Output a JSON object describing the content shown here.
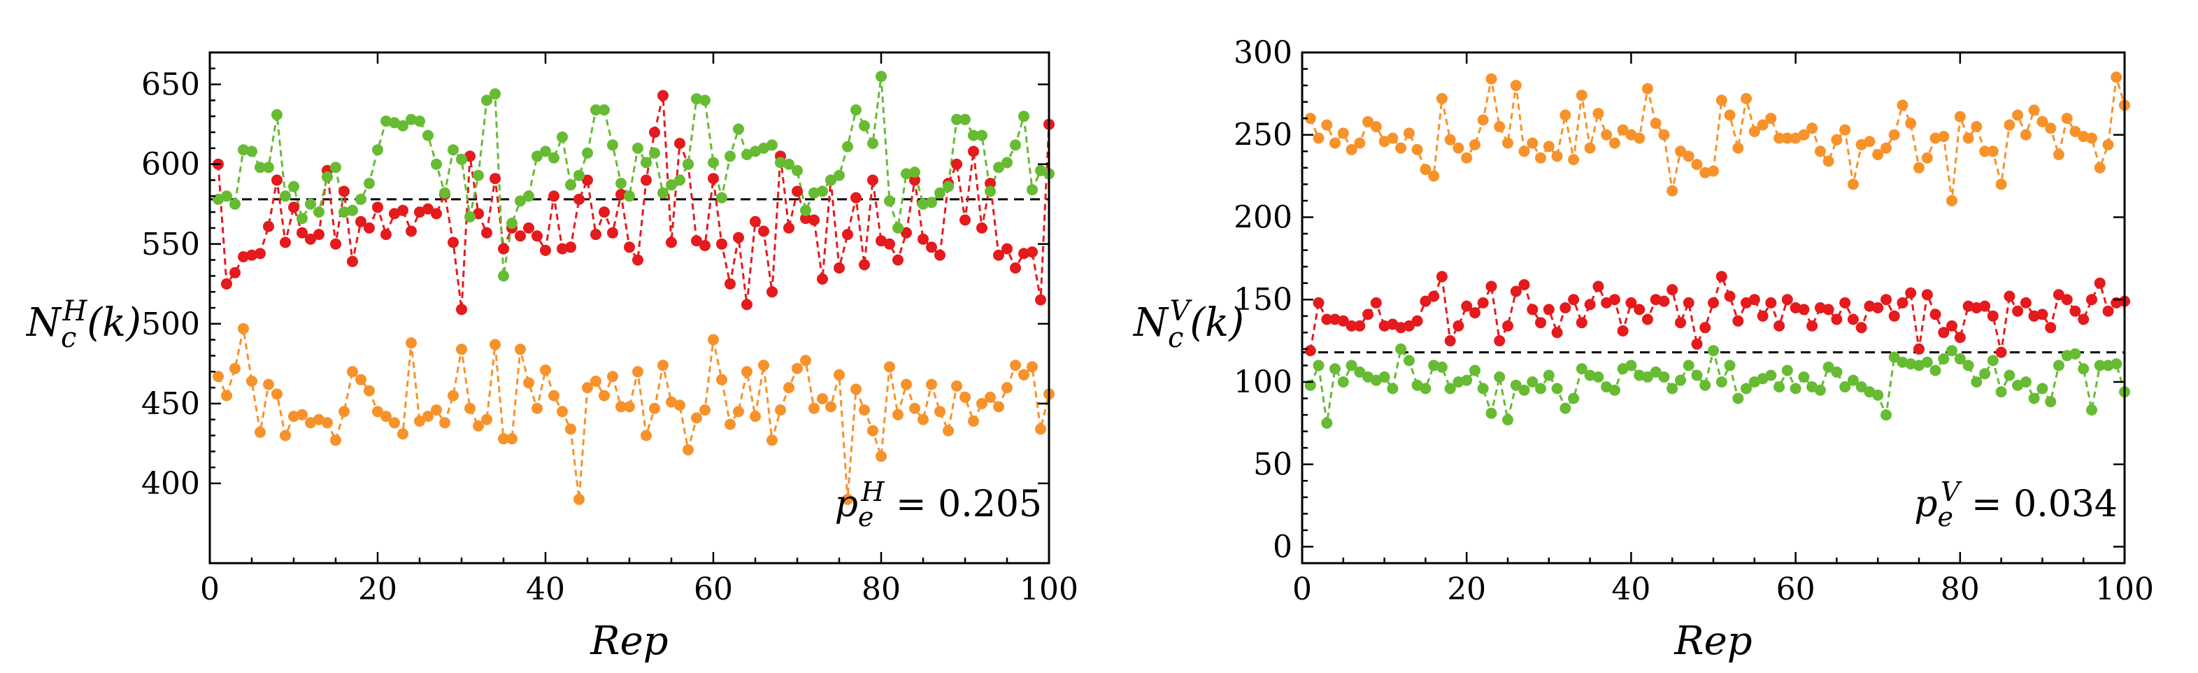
{
  "colors": {
    "red": "#e41a1c",
    "green": "#66bb33",
    "orange": "#f7922b"
  },
  "chart_data": [
    {
      "type": "line",
      "xlabel": "Rep",
      "ylabel": {
        "base": "N",
        "sub": "c",
        "sup": "H",
        "tail": "(k)"
      },
      "xlim": [
        0,
        100
      ],
      "ylim": [
        350,
        670
      ],
      "xticks": [
        0,
        20,
        40,
        60,
        80,
        100
      ],
      "yticks": [
        400,
        450,
        500,
        550,
        600,
        650
      ],
      "reference_line": 578,
      "annotation": {
        "base": "p",
        "sub": "e",
        "sup": "H",
        "text": " = 0.205"
      },
      "series": [
        {
          "name": "red",
          "color": "red",
          "values": [
            600,
            525,
            532,
            542,
            543,
            544,
            561,
            590,
            551,
            573,
            557,
            553,
            556,
            596,
            550,
            583,
            539,
            564,
            560,
            573,
            556,
            569,
            571,
            558,
            570,
            572,
            569,
            581,
            551,
            509,
            605,
            569,
            557,
            591,
            547,
            560,
            555,
            560,
            555,
            546,
            580,
            547,
            548,
            578,
            590,
            556,
            570,
            557,
            581,
            548,
            540,
            590,
            620,
            643,
            551,
            613,
            600,
            552,
            549,
            591,
            550,
            525,
            554,
            512,
            564,
            558,
            520,
            605,
            560,
            583,
            566,
            565,
            528,
            590,
            535,
            556,
            579,
            537,
            590,
            552,
            550,
            540,
            557,
            590,
            553,
            548,
            543,
            588,
            600,
            565,
            608,
            560,
            588,
            543,
            547,
            535,
            544,
            545,
            515,
            625
          ]
        },
        {
          "name": "green",
          "color": "green",
          "values": [
            578,
            580,
            575,
            609,
            608,
            598,
            598,
            631,
            580,
            586,
            566,
            575,
            570,
            592,
            598,
            570,
            571,
            578,
            588,
            609,
            627,
            626,
            624,
            628,
            627,
            618,
            600,
            582,
            609,
            603,
            567,
            593,
            640,
            644,
            530,
            563,
            577,
            580,
            605,
            608,
            604,
            617,
            587,
            593,
            607,
            634,
            634,
            612,
            588,
            580,
            610,
            601,
            607,
            582,
            587,
            590,
            600,
            641,
            640,
            601,
            579,
            605,
            622,
            606,
            608,
            610,
            612,
            601,
            600,
            596,
            571,
            582,
            583,
            590,
            593,
            611,
            634,
            624,
            613,
            655,
            577,
            560,
            594,
            595,
            575,
            576,
            582,
            586,
            628,
            628,
            618,
            618,
            583,
            598,
            601,
            612,
            630,
            584,
            596,
            594
          ]
        },
        {
          "name": "orange",
          "color": "orange",
          "values": [
            467,
            455,
            472,
            497,
            464,
            432,
            462,
            456,
            430,
            442,
            443,
            438,
            440,
            438,
            427,
            445,
            470,
            465,
            458,
            445,
            442,
            438,
            431,
            488,
            439,
            442,
            446,
            438,
            455,
            484,
            447,
            436,
            440,
            487,
            428,
            428,
            484,
            463,
            447,
            471,
            455,
            445,
            434,
            390,
            460,
            464,
            455,
            467,
            448,
            448,
            470,
            430,
            447,
            474,
            451,
            449,
            421,
            441,
            446,
            490,
            465,
            437,
            445,
            470,
            442,
            474,
            427,
            446,
            460,
            472,
            477,
            447,
            453,
            448,
            468,
            390,
            459,
            446,
            433,
            417,
            473,
            443,
            462,
            447,
            440,
            462,
            445,
            433,
            461,
            454,
            439,
            450,
            454,
            448,
            460,
            474,
            468,
            473,
            434,
            456
          ]
        }
      ]
    },
    {
      "type": "line",
      "xlabel": "Rep",
      "ylabel": {
        "base": "N",
        "sub": "c",
        "sup": "V",
        "tail": "(k)"
      },
      "xlim": [
        0,
        100
      ],
      "ylim": [
        -10,
        300
      ],
      "xticks": [
        0,
        20,
        40,
        60,
        80,
        100
      ],
      "yticks": [
        0,
        50,
        100,
        150,
        200,
        250,
        300
      ],
      "reference_line": 118,
      "annotation": {
        "base": "p",
        "sub": "e",
        "sup": "V",
        "text": " = 0.034"
      },
      "series": [
        {
          "name": "orange",
          "color": "orange",
          "values": [
            260,
            248,
            256,
            245,
            251,
            241,
            245,
            258,
            255,
            246,
            248,
            242,
            251,
            241,
            229,
            225,
            272,
            247,
            242,
            236,
            244,
            259,
            284,
            255,
            245,
            280,
            240,
            245,
            236,
            243,
            237,
            262,
            235,
            274,
            242,
            263,
            250,
            245,
            253,
            250,
            248,
            278,
            257,
            250,
            216,
            240,
            237,
            232,
            227,
            228,
            271,
            262,
            242,
            272,
            252,
            256,
            260,
            248,
            248,
            248,
            250,
            254,
            240,
            234,
            247,
            253,
            220,
            244,
            246,
            238,
            242,
            250,
            268,
            257,
            230,
            236,
            248,
            249,
            210,
            261,
            248,
            255,
            240,
            240,
            220,
            256,
            262,
            250,
            265,
            258,
            254,
            238,
            260,
            252,
            249,
            248,
            230,
            244,
            285,
            268
          ]
        },
        {
          "name": "red",
          "color": "red",
          "values": [
            119,
            148,
            138,
            138,
            137,
            134,
            134,
            141,
            148,
            134,
            135,
            133,
            134,
            137,
            149,
            152,
            164,
            125,
            134,
            146,
            142,
            148,
            158,
            125,
            134,
            155,
            159,
            144,
            136,
            144,
            130,
            145,
            150,
            136,
            147,
            158,
            148,
            150,
            131,
            148,
            144,
            138,
            150,
            149,
            156,
            136,
            148,
            123,
            133,
            148,
            164,
            152,
            137,
            148,
            150,
            140,
            148,
            134,
            150,
            145,
            144,
            134,
            145,
            144,
            138,
            148,
            138,
            133,
            146,
            145,
            150,
            140,
            148,
            154,
            120,
            153,
            141,
            130,
            134,
            127,
            146,
            145,
            146,
            140,
            118,
            152,
            143,
            148,
            140,
            141,
            133,
            153,
            150,
            143,
            138,
            150,
            160,
            143,
            148,
            149
          ]
        },
        {
          "name": "green",
          "color": "green",
          "values": [
            98,
            110,
            75,
            108,
            100,
            110,
            106,
            103,
            101,
            103,
            96,
            120,
            113,
            98,
            96,
            110,
            109,
            96,
            100,
            101,
            107,
            96,
            81,
            103,
            77,
            98,
            95,
            100,
            96,
            104,
            96,
            84,
            90,
            108,
            104,
            103,
            97,
            95,
            108,
            110,
            104,
            103,
            106,
            103,
            96,
            101,
            110,
            104,
            98,
            119,
            100,
            110,
            90,
            96,
            100,
            102,
            104,
            97,
            107,
            96,
            103,
            97,
            95,
            109,
            106,
            97,
            101,
            97,
            94,
            92,
            80,
            115,
            112,
            111,
            110,
            112,
            107,
            114,
            119,
            114,
            110,
            100,
            105,
            113,
            94,
            104,
            98,
            100,
            90,
            96,
            88,
            110,
            116,
            117,
            108,
            83,
            110,
            110,
            111,
            94
          ]
        }
      ]
    }
  ]
}
